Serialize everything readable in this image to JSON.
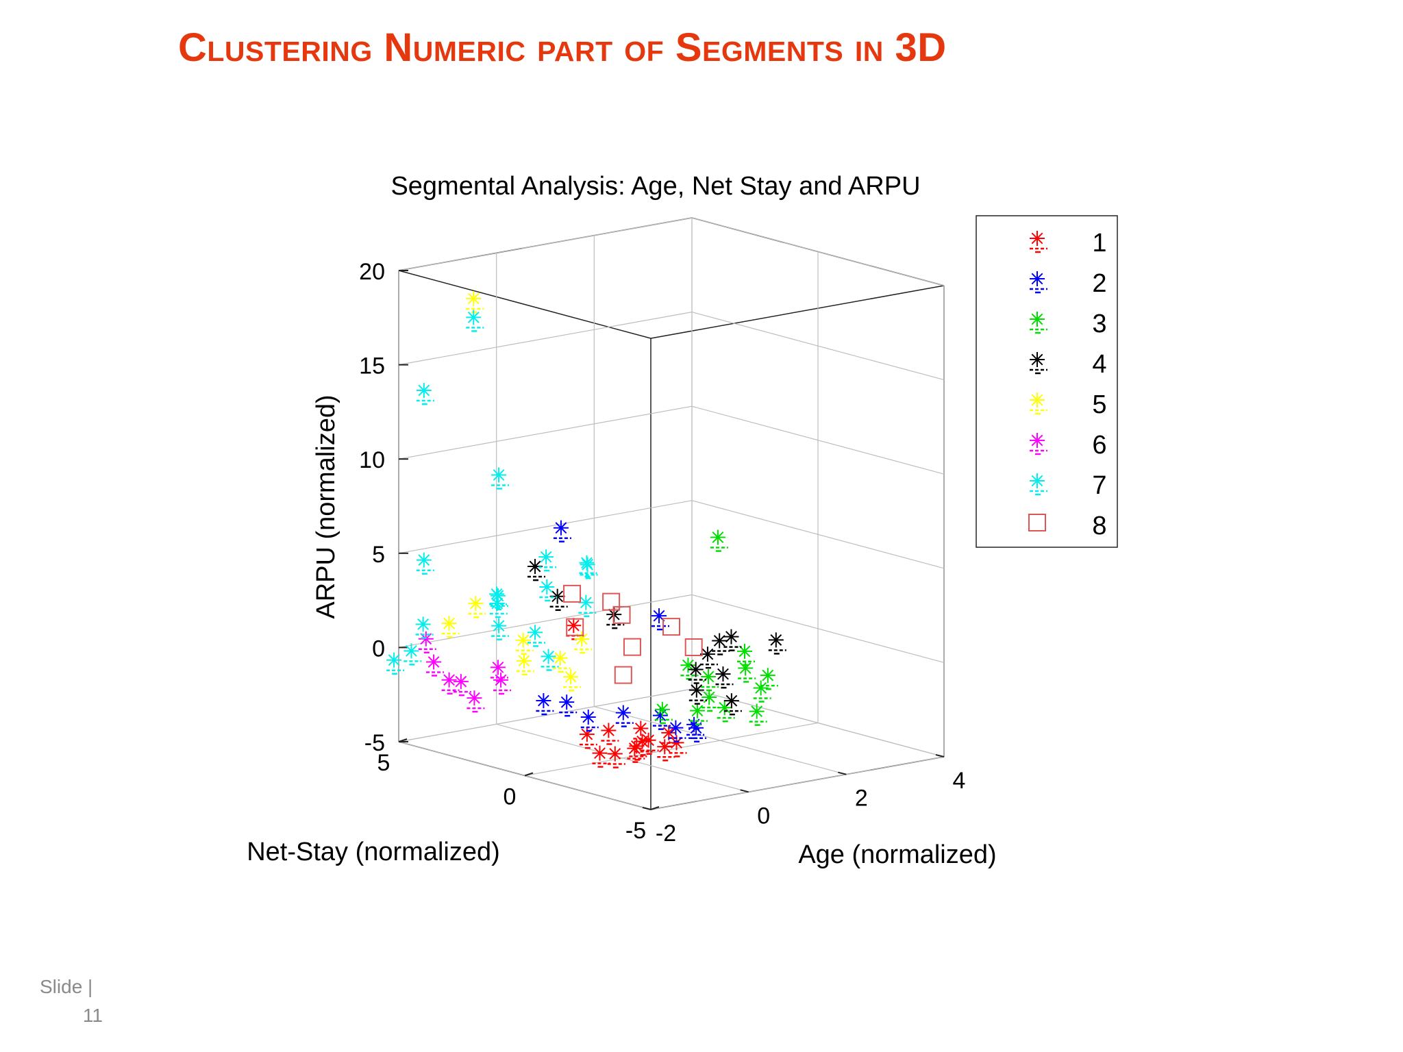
{
  "slide": {
    "title": "Clustering Numeric part of Segments in 3D",
    "footer_label": "Slide |",
    "footer_number": "11",
    "title_color": "#e5380e"
  },
  "chart_data": {
    "type": "scatter",
    "projection": "3d",
    "title": "Segmental Analysis: Age, Net Stay and ARPU",
    "xlabel": "Age (normalized)",
    "ylabel": "Net-Stay (normalized)",
    "zlabel": "ARPU (normalized)",
    "xlim": [
      -2,
      4
    ],
    "ylim": [
      -5,
      5
    ],
    "zlim": [
      -5,
      20
    ],
    "xticks": [
      "-2",
      "0",
      "2",
      "4"
    ],
    "yticks": [
      "-5",
      "0",
      "5"
    ],
    "zticks": [
      "-5",
      "0",
      "5",
      "10",
      "15",
      "20"
    ],
    "grid": true,
    "legend_position": "right",
    "series": [
      {
        "name": "1",
        "color": "#ff0000",
        "marker": "asterisk",
        "points": [
          [
            -1.3,
            -3,
            -2.8
          ],
          [
            -1,
            -2.5,
            -3
          ],
          [
            -0.7,
            -3.5,
            -2.6
          ],
          [
            -1.5,
            -1.5,
            -2.5
          ],
          [
            -0.5,
            -2,
            -3.1
          ],
          [
            -1.2,
            -4,
            -2.4
          ],
          [
            -0.8,
            -1,
            -2.8
          ],
          [
            -1.4,
            -3.5,
            -2.2
          ],
          [
            -1.6,
            -2.2,
            -3.2
          ],
          [
            -0.6,
            -3,
            -2.3
          ],
          [
            -1,
            0,
            2.5
          ],
          [
            -0.4,
            -1.5,
            -2.7
          ],
          [
            -1.7,
            -3,
            -2.9
          ]
        ]
      },
      {
        "name": "2",
        "color": "#0000ff",
        "marker": "asterisk",
        "points": [
          [
            -1,
            0.5,
            7.5
          ],
          [
            -0.8,
            -3,
            4
          ],
          [
            -0.5,
            -1,
            -2
          ],
          [
            -0.2,
            -2.5,
            -2.4
          ],
          [
            -0.6,
            -4,
            -1.5
          ],
          [
            -1.1,
            1,
            -1.8
          ],
          [
            0,
            -1.5,
            -2.2
          ],
          [
            -0.3,
            -3.5,
            -2
          ],
          [
            -0.7,
            0,
            -2.5
          ],
          [
            -1.4,
            -0.5,
            -1.2
          ]
        ]
      },
      {
        "name": "3",
        "color": "#00dd00",
        "marker": "asterisk",
        "points": [
          [
            0.5,
            -2,
            -2
          ],
          [
            1,
            -1.5,
            -1.7
          ],
          [
            1.5,
            -0.5,
            -1.2
          ],
          [
            2,
            -1,
            -0.8
          ],
          [
            2.5,
            0,
            -0.5
          ],
          [
            1.2,
            -3,
            -2
          ],
          [
            0.8,
            -2.5,
            -1.8
          ],
          [
            1.8,
            -2,
            -1.4
          ],
          [
            2.2,
            -1.5,
            -1.1
          ],
          [
            3.5,
            3,
            4
          ],
          [
            1.6,
            0.5,
            -1
          ],
          [
            0.3,
            -1,
            -2.2
          ]
        ]
      },
      {
        "name": "4",
        "color": "#000000",
        "marker": "asterisk",
        "points": [
          [
            1,
            -1,
            -1.5
          ],
          [
            1.5,
            0,
            -1
          ],
          [
            2,
            0.5,
            -0.6
          ],
          [
            3,
            1.5,
            -0.5
          ],
          [
            3.4,
            0.5,
            -0.5
          ],
          [
            2.5,
            1,
            -0.3
          ],
          [
            0.6,
            1.5,
            1.8
          ],
          [
            -0.3,
            2,
            3
          ],
          [
            1.8,
            -0.5,
            -1.2
          ],
          [
            1.2,
            -2,
            -1.8
          ],
          [
            -0.5,
            2.5,
            4.5
          ]
        ]
      },
      {
        "name": "5",
        "color": "#ffff00",
        "marker": "asterisk",
        "points": [
          [
            -1.5,
            3,
            19
          ],
          [
            -1,
            2,
            1
          ],
          [
            -1.5,
            1,
            0.5
          ],
          [
            -0.5,
            1.5,
            0
          ],
          [
            -2,
            3,
            2
          ],
          [
            -1.2,
            3.5,
            2.5
          ],
          [
            0.2,
            2,
            0.5
          ],
          [
            -0.8,
            0.5,
            -0.5
          ]
        ]
      },
      {
        "name": "6",
        "color": "#ff00ff",
        "marker": "asterisk",
        "points": [
          [
            -2,
            3,
            -1
          ],
          [
            -1.8,
            4,
            -0.5
          ],
          [
            -1.5,
            3.5,
            -1.5
          ],
          [
            -2,
            2,
            -1.6
          ],
          [
            -1.2,
            2.5,
            -1.2
          ],
          [
            -1.7,
            4.5,
            0.5
          ],
          [
            -1,
            3,
            -0.8
          ]
        ]
      },
      {
        "name": "7",
        "color": "#00eeee",
        "marker": "asterisk",
        "points": [
          [
            -1.5,
            3,
            18
          ],
          [
            -2,
            4,
            14
          ],
          [
            -1.5,
            2,
            10
          ],
          [
            -2,
            4,
            5
          ],
          [
            -1,
            3,
            3
          ],
          [
            -1.5,
            2,
            2
          ],
          [
            -0.5,
            2.5,
            1
          ],
          [
            -2,
            4.5,
            0
          ],
          [
            -1,
            1,
            0.5
          ],
          [
            0,
            3,
            3
          ],
          [
            0.5,
            4,
            4
          ],
          [
            -1.5,
            5,
            1
          ],
          [
            -0.5,
            4,
            2
          ],
          [
            -2.2,
            4.8,
            -0.5
          ],
          [
            0.8,
            3,
            1.8
          ],
          [
            -1.8,
            1.5,
            4
          ],
          [
            -0.2,
            1,
            5
          ],
          [
            0.3,
            2,
            4.5
          ]
        ]
      },
      {
        "name": "8",
        "color": "#dd5555",
        "marker": "square",
        "points": [
          [
            0,
            2,
            3
          ],
          [
            0.5,
            1,
            2
          ],
          [
            -0.5,
            -1,
            0
          ],
          [
            1,
            0,
            1.5
          ],
          [
            1.2,
            -0.5,
            0.5
          ],
          [
            0.2,
            0,
            0.8
          ],
          [
            -0.2,
            1.5,
            1.5
          ],
          [
            0.8,
            2,
            2.2
          ]
        ]
      }
    ]
  }
}
